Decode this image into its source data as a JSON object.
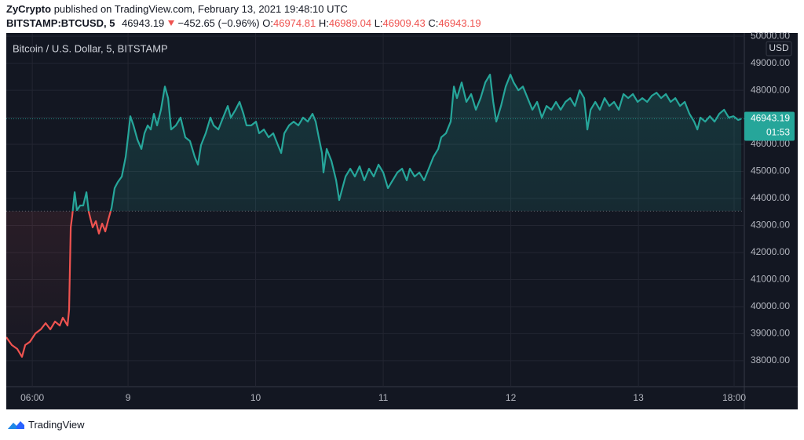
{
  "header": {
    "author": "ZyCrypto",
    "published": "published on TradingView.com, February 13, 2021 19:48:10 UTC",
    "symbol": "BITSTAMP:BTCUSD, 5",
    "change": "−452.65 (−0.96%)"
  },
  "footer": {
    "brand": "TradingView"
  },
  "chart_data": {
    "type": "baseline",
    "title": "Bitcoin / U.S. Dollar, 5, BITSTAMP",
    "currency": "USD",
    "countdown": "01:53",
    "ohlc_labels": [
      "O:",
      "H:",
      "L:",
      "C:"
    ],
    "ohlc": {
      "open": 46974.81,
      "high": 46989.04,
      "low": 46909.43,
      "close": 46943.19
    },
    "color": "#26a69a",
    "down_color": "#ef5350",
    "baseline": 43530,
    "grid": true,
    "xlim": [
      8.046,
      13.83
    ],
    "ylim": [
      37040,
      50120
    ],
    "xticks": [
      {
        "value": 8.25,
        "label": "06:00"
      },
      9,
      10,
      11,
      12,
      13,
      {
        "value": 13.75,
        "label": "18:00"
      }
    ],
    "yticks": [
      {
        "value": 38000,
        "label": "38000.00"
      },
      {
        "value": 39000,
        "label": "39000.00"
      },
      {
        "value": 40000,
        "label": "40000.00"
      },
      {
        "value": 41000,
        "label": "41000.00"
      },
      {
        "value": 42000,
        "label": "42000.00"
      },
      {
        "value": 43000,
        "label": "43000.00"
      },
      {
        "value": 44000,
        "label": "44000.00"
      },
      {
        "value": 45000,
        "label": "45000.00"
      },
      {
        "value": 46000,
        "label": "46000.00"
      },
      {
        "value": 47000,
        "label": "47000.00"
      },
      {
        "value": 48000,
        "label": "48000.00"
      },
      {
        "value": 49000,
        "label": "49000.00"
      },
      {
        "value": 50000,
        "label": "50000.00"
      }
    ],
    "x": [
      8.046,
      8.089,
      8.132,
      8.169,
      8.194,
      8.231,
      8.274,
      8.317,
      8.354,
      8.391,
      8.428,
      8.465,
      8.489,
      8.526,
      8.538,
      8.551,
      8.563,
      8.582,
      8.6,
      8.625,
      8.649,
      8.674,
      8.692,
      8.723,
      8.748,
      8.772,
      8.797,
      8.822,
      8.846,
      8.871,
      8.895,
      8.92,
      8.951,
      8.982,
      9.0,
      9.018,
      9.043,
      9.074,
      9.105,
      9.129,
      9.154,
      9.178,
      9.203,
      9.228,
      9.258,
      9.289,
      9.314,
      9.338,
      9.375,
      9.412,
      9.449,
      9.486,
      9.523,
      9.548,
      9.572,
      9.609,
      9.646,
      9.671,
      9.708,
      9.745,
      9.782,
      9.806,
      9.843,
      9.874,
      9.905,
      9.929,
      9.966,
      10.003,
      10.028,
      10.065,
      10.102,
      10.138,
      10.175,
      10.2,
      10.225,
      10.262,
      10.298,
      10.335,
      10.372,
      10.409,
      10.446,
      10.471,
      10.495,
      10.52,
      10.532,
      10.557,
      10.594,
      10.631,
      10.655,
      10.68,
      10.705,
      10.742,
      10.778,
      10.815,
      10.852,
      10.889,
      10.926,
      10.963,
      11.0,
      11.037,
      11.074,
      11.111,
      11.148,
      11.185,
      11.209,
      11.246,
      11.283,
      11.32,
      11.357,
      11.394,
      11.431,
      11.455,
      11.492,
      11.529,
      11.554,
      11.578,
      11.615,
      11.652,
      11.689,
      11.726,
      11.763,
      11.8,
      11.837,
      11.862,
      11.886,
      11.923,
      11.96,
      11.997,
      12.022,
      12.059,
      12.095,
      12.132,
      12.169,
      12.206,
      12.243,
      12.28,
      12.317,
      12.354,
      12.391,
      12.428,
      12.465,
      12.502,
      12.539,
      12.575,
      12.6,
      12.625,
      12.662,
      12.698,
      12.735,
      12.772,
      12.809,
      12.846,
      12.883,
      12.92,
      12.957,
      12.994,
      13.031,
      13.068,
      13.105,
      13.142,
      13.178,
      13.215,
      13.252,
      13.289,
      13.326,
      13.363,
      13.4,
      13.437,
      13.462,
      13.486,
      13.523,
      13.56,
      13.597,
      13.634,
      13.671,
      13.708,
      13.745,
      13.782,
      13.806
    ],
    "values": [
      38870,
      38580,
      38435,
      38145,
      38580,
      38700,
      39010,
      39160,
      39390,
      39160,
      39450,
      39300,
      39590,
      39300,
      39880,
      42930,
      43360,
      44230,
      43565,
      43740,
      43740,
      44230,
      43510,
      42930,
      43160,
      42700,
      43070,
      42780,
      43220,
      43650,
      44380,
      44600,
      44810,
      45540,
      46260,
      47040,
      46700,
      46170,
      45830,
      46410,
      46700,
      46550,
      47130,
      46700,
      47280,
      48140,
      47710,
      46550,
      46700,
      46990,
      46260,
      46120,
      45540,
      45250,
      45970,
      46410,
      46990,
      46700,
      46550,
      46990,
      47420,
      46990,
      47280,
      47570,
      47130,
      46700,
      46700,
      46840,
      46410,
      46550,
      46260,
      46410,
      45970,
      45680,
      46410,
      46700,
      46840,
      46700,
      46990,
      46840,
      47130,
      46840,
      46260,
      45680,
      44960,
      45830,
      45390,
      44670,
      43940,
      44380,
      44810,
      45100,
      44810,
      45190,
      44670,
      45100,
      44810,
      45250,
      44960,
      44380,
      44670,
      44960,
      45100,
      44670,
      45100,
      44810,
      44960,
      44670,
      45100,
      45540,
      45830,
      46260,
      46410,
      46840,
      48140,
      47710,
      48290,
      47570,
      47860,
      47280,
      47710,
      48290,
      48580,
      47570,
      46840,
      47420,
      48140,
      48580,
      48290,
      48000,
      48140,
      47710,
      47280,
      47570,
      46990,
      47420,
      47280,
      47570,
      47280,
      47570,
      47710,
      47420,
      48000,
      47710,
      46550,
      47280,
      47570,
      47280,
      47710,
      47420,
      47570,
      47280,
      47860,
      47710,
      47860,
      47570,
      47710,
      47570,
      47800,
      47910,
      47710,
      47860,
      47570,
      47710,
      47420,
      47570,
      47130,
      46840,
      46550,
      46990,
      46840,
      47040,
      46840,
      47130,
      47280,
      46990,
      47040,
      46900,
      46943.19
    ]
  }
}
